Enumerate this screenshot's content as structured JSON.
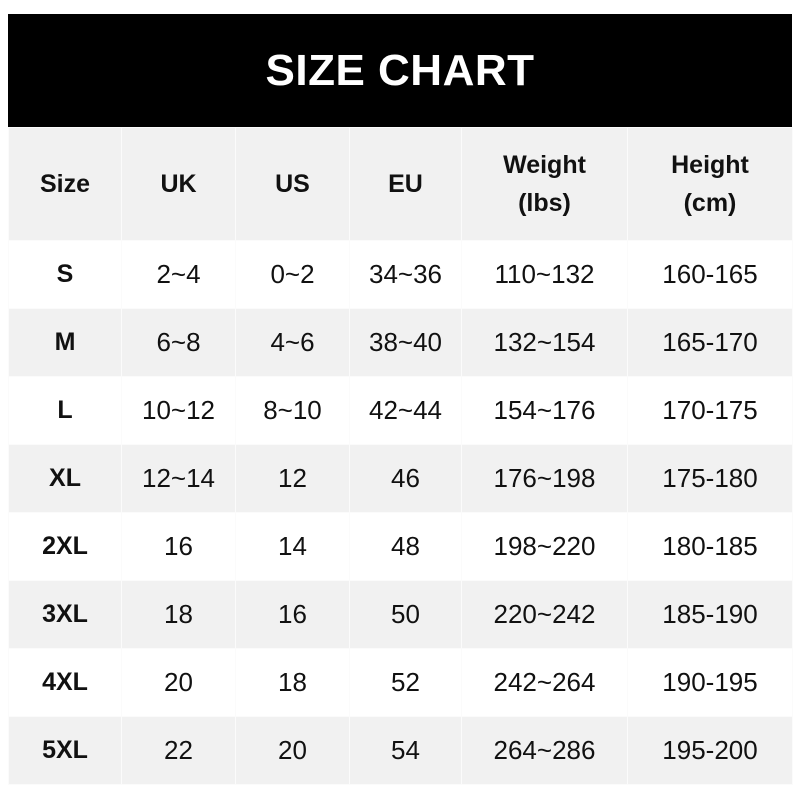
{
  "title": "SIZE CHART",
  "chart_data": {
    "type": "table",
    "title": "SIZE CHART",
    "columns": [
      "Size",
      "UK",
      "US",
      "EU",
      "Weight\n(lbs)",
      "Height\n(cm)"
    ],
    "rows": [
      [
        "S",
        "2~4",
        "0~2",
        "34~36",
        "110~132",
        "160-165"
      ],
      [
        "M",
        "6~8",
        "4~6",
        "38~40",
        "132~154",
        "165-170"
      ],
      [
        "L",
        "10~12",
        "8~10",
        "42~44",
        "154~176",
        "170-175"
      ],
      [
        "XL",
        "12~14",
        "12",
        "46",
        "176~198",
        "175-180"
      ],
      [
        "2XL",
        "16",
        "14",
        "48",
        "198~220",
        "180-185"
      ],
      [
        "3XL",
        "18",
        "16",
        "50",
        "220~242",
        "185-190"
      ],
      [
        "4XL",
        "20",
        "18",
        "52",
        "242~264",
        "190-195"
      ],
      [
        "5XL",
        "22",
        "20",
        "54",
        "264~286",
        "195-200"
      ]
    ]
  },
  "colors": {
    "header_bg": "#000000",
    "header_text": "#ffffff",
    "stripe": "#f1f1f1"
  }
}
